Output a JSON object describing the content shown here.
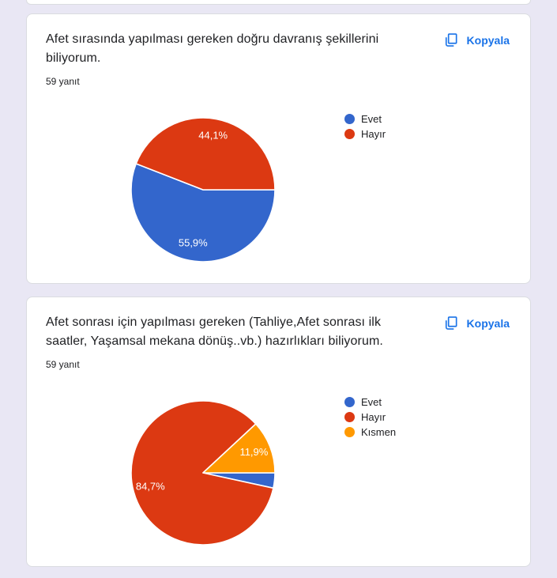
{
  "page": {
    "background_color": "#e9e7f4",
    "accent_color": "#1a73e8"
  },
  "cards": [
    {
      "title": "Afet sırasında yapılması gereken doğru davranış  şekillerini biliyorum.",
      "answers_label": "59 yanıt",
      "copy_label": "Kopyala",
      "chart_data": {
        "type": "pie",
        "categories": [
          "Evet",
          "Hayır"
        ],
        "values": [
          55.9,
          44.1
        ],
        "labels": [
          "55,9%",
          "44,1%"
        ],
        "colors": [
          "#3366cc",
          "#dc3912"
        ],
        "title": "",
        "legend_position": "right",
        "responses": 59
      }
    },
    {
      "title": "Afet sonrası için yapılması gereken (Tahliye,Afet sonrası ilk saatler, Yaşamsal mekana dönüş..vb.) hazırlıkları biliyorum.",
      "answers_label": "59 yanıt",
      "copy_label": "Kopyala",
      "chart_data": {
        "type": "pie",
        "categories": [
          "Evet",
          "Hayır",
          "Kısmen"
        ],
        "values": [
          3.4,
          84.7,
          11.9
        ],
        "labels": [
          "",
          "84,7%",
          "11,9%"
        ],
        "colors": [
          "#3366cc",
          "#dc3912",
          "#ff9900"
        ],
        "title": "",
        "legend_position": "right",
        "responses": 59
      }
    }
  ]
}
